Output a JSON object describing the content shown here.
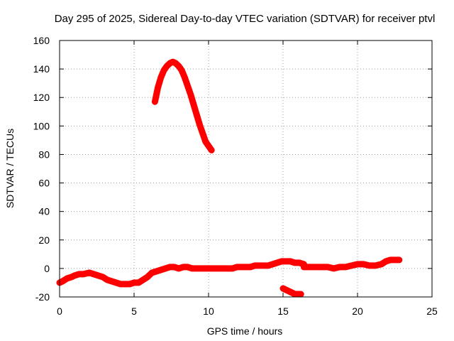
{
  "chart_data": {
    "type": "line",
    "title": "Day 295 of 2025, Sidereal Day-to-day VTEC variation (SDTVAR) for receiver ptvl",
    "xlabel": "GPS time / hours",
    "ylabel": "SDTVAR / TECUs",
    "xlim": [
      0,
      25
    ],
    "ylim": [
      -20,
      160
    ],
    "xticks": [
      0,
      5,
      10,
      15,
      20,
      25
    ],
    "yticks": [
      -20,
      0,
      20,
      40,
      60,
      80,
      100,
      120,
      140,
      160
    ],
    "xtick_labels": [
      "0",
      "5",
      "10",
      "15",
      "20",
      "25"
    ],
    "ytick_labels": [
      "-20",
      "0",
      "20",
      "40",
      "60",
      "80",
      "100",
      "120",
      "140",
      "160"
    ],
    "grid": true,
    "legend": "none",
    "series_color": "#ff0000",
    "series": [
      {
        "name": "segment-1",
        "x": [
          0.0,
          0.2,
          0.5,
          0.8,
          1.0,
          1.3,
          1.6,
          2.0,
          2.3,
          2.6,
          2.9,
          3.2,
          3.5,
          3.8,
          4.1,
          4.4,
          4.7,
          5.0,
          5.3,
          5.6,
          5.9,
          6.2,
          6.5,
          6.8,
          7.1,
          7.4,
          7.7,
          8.0,
          8.3,
          8.6,
          8.9,
          9.2,
          9.5,
          9.8,
          10.1,
          10.4,
          10.7,
          11.0,
          11.3,
          11.6,
          11.9,
          12.2,
          12.5,
          12.8,
          13.1,
          13.4,
          13.7,
          14.0,
          14.3,
          14.6,
          14.9,
          15.2,
          15.5,
          15.8,
          16.1,
          16.4
        ],
        "y": [
          -10,
          -9,
          -7,
          -6,
          -5,
          -4,
          -4,
          -3,
          -4,
          -5,
          -6,
          -8,
          -9,
          -10,
          -11,
          -11,
          -11,
          -10,
          -10,
          -8,
          -6,
          -3,
          -2,
          -1,
          0,
          1,
          1,
          0,
          1,
          1,
          0,
          0,
          0,
          0,
          0,
          0,
          0,
          0,
          0,
          0,
          1,
          1,
          1,
          1,
          2,
          2,
          2,
          2,
          3,
          4,
          5,
          5,
          5,
          4,
          4,
          3
        ]
      },
      {
        "name": "segment-2",
        "x": [
          16.4,
          16.8,
          17.2,
          17.6,
          18.0,
          18.4,
          18.8,
          19.2,
          19.6,
          20.0,
          20.4,
          20.8,
          21.2,
          21.6,
          21.9,
          22.2,
          22.5,
          22.8
        ],
        "y": [
          1,
          1,
          1,
          1,
          1,
          0,
          1,
          1,
          2,
          3,
          3,
          2,
          2,
          3,
          5,
          6,
          6,
          6
        ]
      },
      {
        "name": "segment-3",
        "x": [
          6.4,
          6.6,
          6.8,
          7.0,
          7.2,
          7.4,
          7.6,
          7.8,
          8.0,
          8.2,
          8.4,
          8.6,
          8.8,
          9.0,
          9.2,
          9.4,
          9.6,
          9.8,
          10.0,
          10.2
        ],
        "y": [
          117,
          127,
          134,
          139,
          142,
          144,
          145,
          144,
          142,
          139,
          134,
          128,
          122,
          115,
          108,
          101,
          95,
          89,
          86,
          83
        ]
      },
      {
        "name": "segment-4",
        "x": [
          15.0,
          15.2,
          15.4,
          15.6,
          15.8,
          16.0,
          16.2
        ],
        "y": [
          -14,
          -15,
          -16,
          -17,
          -18,
          -18,
          -18
        ]
      }
    ]
  }
}
